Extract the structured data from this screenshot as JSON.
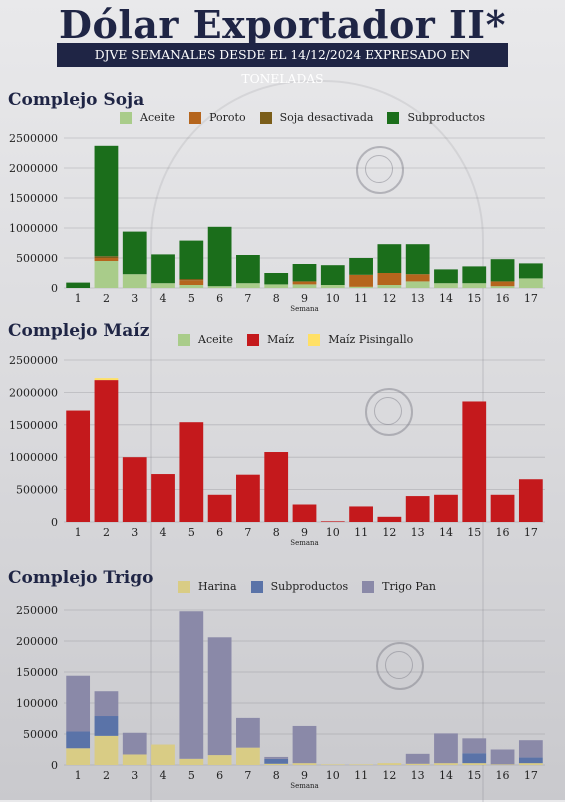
{
  "title": "Dólar Exportador II*",
  "subtitle": "DJVE SEMANALES DESDE EL 14/12/2024 EXPRESADO EN TONELADAS",
  "chart_data": [
    {
      "type": "bar",
      "title": "Complejo Soja",
      "xlabel": "Semana",
      "ylim": [
        0,
        2500000
      ],
      "yticks": [
        0,
        500000,
        1000000,
        1500000,
        2000000,
        2500000
      ],
      "categories": [
        "1",
        "2",
        "3",
        "4",
        "5",
        "6",
        "7",
        "8",
        "9",
        "10",
        "11",
        "12",
        "13",
        "14",
        "15",
        "16",
        "17"
      ],
      "series": [
        {
          "name": "Aceite",
          "color": "#a9cc8a",
          "values": [
            0,
            450000,
            230000,
            80000,
            50000,
            30000,
            80000,
            60000,
            60000,
            50000,
            20000,
            50000,
            110000,
            80000,
            80000,
            30000,
            160000
          ]
        },
        {
          "name": "Poroto",
          "color": "#b5651d",
          "values": [
            0,
            50000,
            0,
            0,
            80000,
            0,
            0,
            0,
            50000,
            0,
            200000,
            200000,
            120000,
            0,
            0,
            80000,
            0
          ]
        },
        {
          "name": "Soja desactivada",
          "color": "#7b5e1a",
          "values": [
            0,
            30000,
            0,
            0,
            20000,
            0,
            0,
            0,
            0,
            0,
            0,
            0,
            0,
            0,
            0,
            0,
            0
          ]
        },
        {
          "name": "Subproductos",
          "color": "#1b6e1b",
          "values": [
            90000,
            1840000,
            710000,
            480000,
            640000,
            990000,
            470000,
            190000,
            290000,
            330000,
            280000,
            480000,
            500000,
            230000,
            280000,
            370000,
            250000
          ]
        }
      ]
    },
    {
      "type": "bar",
      "title": "Complejo Maíz",
      "xlabel": "Semana",
      "ylim": [
        0,
        2500000
      ],
      "yticks": [
        0,
        500000,
        1000000,
        1500000,
        2000000,
        2500000
      ],
      "categories": [
        "1",
        "2",
        "3",
        "4",
        "5",
        "6",
        "7",
        "8",
        "9",
        "10",
        "11",
        "12",
        "13",
        "14",
        "15",
        "16",
        "17"
      ],
      "series": [
        {
          "name": "Aceite",
          "color": "#a9cc8a",
          "values": [
            0,
            0,
            0,
            0,
            0,
            0,
            0,
            0,
            0,
            0,
            0,
            0,
            0,
            0,
            0,
            0,
            0
          ]
        },
        {
          "name": "Maíz",
          "color": "#c4191c",
          "values": [
            1720000,
            2190000,
            1000000,
            740000,
            1540000,
            420000,
            730000,
            1080000,
            270000,
            10000,
            240000,
            80000,
            400000,
            420000,
            1860000,
            420000,
            660000
          ]
        },
        {
          "name": "Maíz Pisingallo",
          "color": "#ffe066",
          "values": [
            0,
            30000,
            0,
            0,
            0,
            0,
            0,
            0,
            0,
            0,
            0,
            0,
            0,
            0,
            0,
            0,
            0
          ]
        }
      ]
    },
    {
      "type": "bar",
      "title": "Complejo Trigo",
      "xlabel": "Semana",
      "ylim": [
        0,
        250000
      ],
      "yticks": [
        0,
        50000,
        100000,
        150000,
        200000,
        250000
      ],
      "categories": [
        "1",
        "2",
        "3",
        "4",
        "5",
        "6",
        "7",
        "8",
        "9",
        "10",
        "11",
        "12",
        "13",
        "14",
        "15",
        "16",
        "17"
      ],
      "series": [
        {
          "name": "Harina",
          "color": "#d9cc85",
          "values": [
            27000,
            47000,
            17000,
            33000,
            10000,
            16000,
            28000,
            2000,
            3000,
            1000,
            1000,
            3000,
            2000,
            3000,
            3000,
            1000,
            3000
          ]
        },
        {
          "name": "Subproductos",
          "color": "#5a73a8",
          "values": [
            27000,
            32000,
            0,
            0,
            0,
            0,
            0,
            8000,
            0,
            0,
            0,
            0,
            0,
            0,
            16000,
            0,
            9000
          ]
        },
        {
          "name": "Trigo Pan",
          "color": "#8a89a8",
          "values": [
            90000,
            40000,
            35000,
            0,
            238000,
            190000,
            48000,
            3000,
            60000,
            0,
            0,
            0,
            16000,
            48000,
            24000,
            24000,
            28000
          ]
        }
      ]
    }
  ]
}
